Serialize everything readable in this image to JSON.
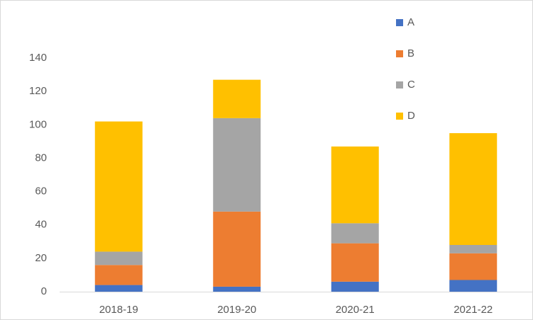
{
  "chart_data": {
    "type": "stacked_bar",
    "categories": [
      "2018-19",
      "2019-20",
      "2020-21",
      "2021-22"
    ],
    "series": [
      {
        "name": "A",
        "color": "#4472c4",
        "values": [
          4,
          3,
          6,
          7
        ]
      },
      {
        "name": "B",
        "color": "#ed7d31",
        "values": [
          12,
          45,
          23,
          16
        ]
      },
      {
        "name": "C",
        "color": "#a5a5a5",
        "values": [
          8,
          56,
          12,
          5
        ]
      },
      {
        "name": "D",
        "color": "#ffc000",
        "values": [
          78,
          23,
          46,
          67
        ]
      }
    ],
    "ylim": [
      0,
      140
    ],
    "yticks": [
      0,
      20,
      40,
      60,
      80,
      100,
      120,
      140
    ],
    "grid": false,
    "legend": "top-right"
  }
}
